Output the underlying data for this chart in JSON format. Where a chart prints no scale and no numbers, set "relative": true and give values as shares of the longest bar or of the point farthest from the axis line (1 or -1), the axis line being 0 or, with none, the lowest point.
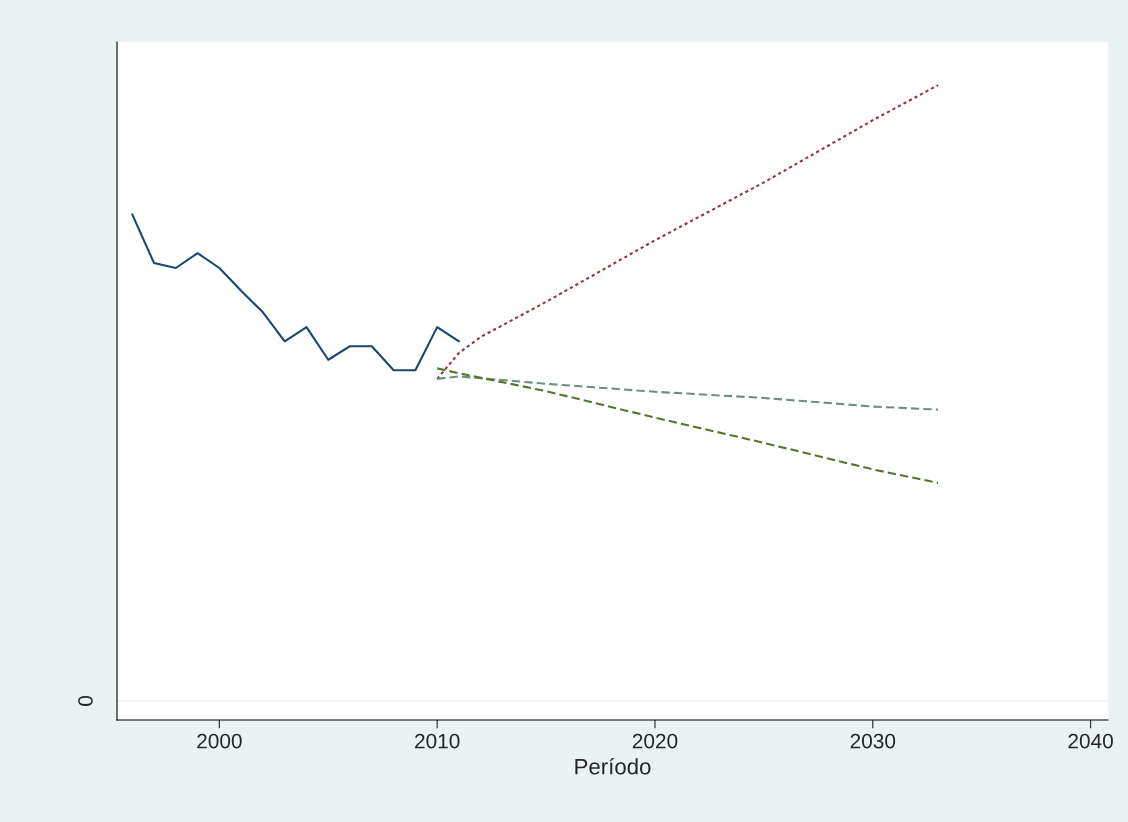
{
  "chart_data": {
    "type": "line",
    "xlabel": "Período",
    "relative": true,
    "xlim": [
      1995.3,
      2040.8
    ],
    "xticks": [
      2000,
      2010,
      2020,
      2030,
      2040
    ],
    "annotations": [
      "0"
    ],
    "series": [
      {
        "color": "#1a476f",
        "line_style": "solid",
        "x": [
          1996,
          1997,
          1998,
          1999,
          2000,
          2001,
          2002,
          2003,
          2004,
          2005,
          2006,
          2007,
          2008,
          2009,
          2010,
          2011
        ],
        "values": [
          0.79,
          0.711,
          0.703,
          0.727,
          0.703,
          0.666,
          0.631,
          0.584,
          0.607,
          0.554,
          0.576,
          0.576,
          0.537,
          0.537,
          0.607,
          0.584
        ]
      },
      {
        "color": "#90353b",
        "line_style": "dotted",
        "x": [
          2010,
          2011,
          2012,
          2015,
          2020,
          2025,
          2030,
          2033
        ],
        "values": [
          0.523,
          0.565,
          0.591,
          0.648,
          0.748,
          0.842,
          0.943,
          1.0
        ]
      },
      {
        "color": "#6e8e84",
        "line_style": "dashed",
        "x": [
          2010,
          2011,
          2015,
          2020,
          2025,
          2030,
          2033
        ],
        "values": [
          0.523,
          0.527,
          0.515,
          0.502,
          0.492,
          0.478,
          0.473
        ]
      },
      {
        "color": "#55752f",
        "line_style": "dashed",
        "x": [
          2010,
          2011,
          2015,
          2020,
          2025,
          2030,
          2033
        ],
        "values": [
          0.54,
          0.532,
          0.503,
          0.46,
          0.419,
          0.376,
          0.354
        ]
      }
    ]
  }
}
